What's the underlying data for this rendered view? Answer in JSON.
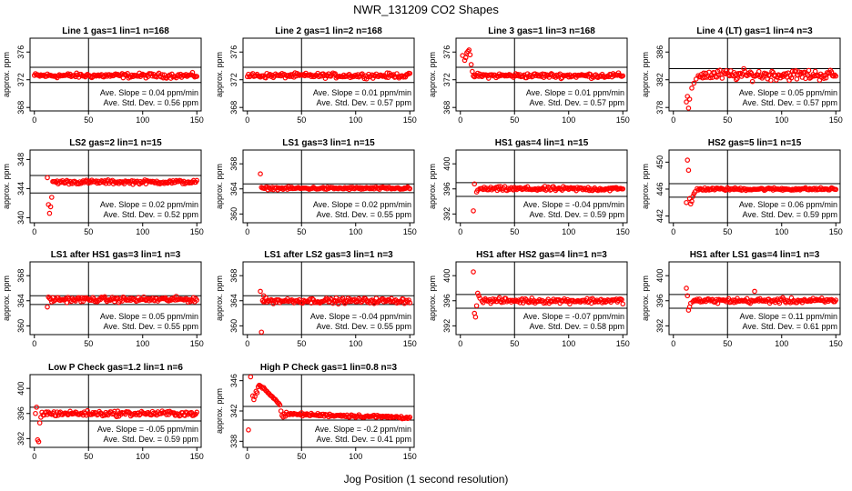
{
  "figure": {
    "title": "NWR_131209  CO2 Shapes",
    "xlabel": "Jog Position (1 second resolution)"
  },
  "chart_data": [
    {
      "type": "scatter",
      "title": "Line 1 gas=1 lin=1 n=168",
      "ylabel": "approx. ppm",
      "xlim": [
        -4,
        154
      ],
      "ylim": [
        367.5,
        378
      ],
      "xticks": [
        0,
        50,
        100,
        150
      ],
      "yticks": [
        368,
        372,
        376
      ],
      "hlines": [
        373.8,
        371.6
      ],
      "vline": 50,
      "slope_text": "Ave. Slope =  0.04  ppm/min",
      "std_text": "Ave. Std. Dev. =  0.56  ppm",
      "series": {
        "x_start": 0,
        "x_end": 150,
        "level": 372.6,
        "noise": 0.25,
        "outliers": []
      }
    },
    {
      "type": "scatter",
      "title": "Line 2 gas=1 lin=2 n=168",
      "ylabel": "approx. ppm",
      "xlim": [
        -4,
        154
      ],
      "ylim": [
        367.5,
        378
      ],
      "xticks": [
        0,
        50,
        100,
        150
      ],
      "yticks": [
        368,
        372,
        376
      ],
      "hlines": [
        373.8,
        371.6
      ],
      "vline": 50,
      "slope_text": "Ave. Slope =  0.01  ppm/min",
      "std_text": "Ave. Std. Dev. =  0.57  ppm",
      "series": {
        "x_start": 0,
        "x_end": 150,
        "level": 372.6,
        "noise": 0.25,
        "outliers": []
      }
    },
    {
      "type": "scatter",
      "title": "Line 3 gas=1 lin=3 n=168",
      "ylabel": "approx. ppm",
      "xlim": [
        -4,
        154
      ],
      "ylim": [
        367.5,
        378
      ],
      "xticks": [
        0,
        50,
        100,
        150
      ],
      "yticks": [
        368,
        372,
        376
      ],
      "hlines": [
        373.8,
        371.6
      ],
      "vline": 50,
      "slope_text": "Ave. Slope =  0.01  ppm/min",
      "std_text": "Ave. Std. Dev. =  0.57  ppm",
      "series": {
        "x_start": 12,
        "x_end": 150,
        "level": 372.6,
        "noise": 0.25,
        "outliers": [
          [
            2,
            375.5
          ],
          [
            4,
            374.8
          ],
          [
            5,
            375.2
          ],
          [
            6,
            375.9
          ],
          [
            7,
            376.1
          ],
          [
            8,
            376.3
          ],
          [
            9,
            375.6
          ],
          [
            10,
            374.2
          ],
          [
            11,
            373.2
          ]
        ]
      }
    },
    {
      "type": "scatter",
      "title": "Line 4 (LT) gas=1 lin=4 n=3",
      "ylabel": "approx. ppm",
      "xlim": [
        -4,
        154
      ],
      "ylim": [
        377.5,
        388
      ],
      "xticks": [
        0,
        50,
        100,
        150
      ],
      "yticks": [
        378,
        382,
        386
      ],
      "hlines": [
        383.6,
        381.6
      ],
      "vline": 50,
      "slope_text": "Ave. Slope =  0.05  ppm/min",
      "std_text": "Ave. Std. Dev. =  0.57  ppm",
      "series": {
        "x_start": 24,
        "x_end": 150,
        "level": 382.7,
        "noise": 0.55,
        "outliers": [
          [
            12,
            378.8
          ],
          [
            13,
            379.6
          ],
          [
            14,
            377.9
          ],
          [
            15,
            379.2
          ],
          [
            17,
            380.8
          ],
          [
            19,
            381.5
          ],
          [
            21,
            382.1
          ],
          [
            23,
            382.6
          ]
        ]
      }
    },
    {
      "type": "scatter",
      "title": "LS2 gas=2 lin=1 n=15",
      "ylabel": "approx. ppm",
      "xlim": [
        -4,
        154
      ],
      "ylim": [
        339.3,
        349.3
      ],
      "xticks": [
        0,
        50,
        100,
        150
      ],
      "yticks": [
        340,
        344,
        348
      ],
      "hlines": [
        345.8,
        343.4
      ],
      "vline": 50,
      "slope_text": "Ave. Slope =  0.02  ppm/min",
      "std_text": "Ave. Std. Dev. =  0.52  ppm",
      "series": {
        "x_start": 17,
        "x_end": 150,
        "level": 344.9,
        "noise": 0.2,
        "outliers": [
          [
            12,
            345.5
          ],
          [
            13,
            341.8
          ],
          [
            14,
            340.6
          ],
          [
            15,
            341.5
          ],
          [
            16,
            342.8
          ]
        ]
      }
    },
    {
      "type": "scatter",
      "title": "LS1 gas=3 lin=1 n=15",
      "ylabel": "approx. ppm",
      "xlim": [
        -4,
        154
      ],
      "ylim": [
        358.6,
        370.2
      ],
      "xticks": [
        0,
        50,
        100,
        150
      ],
      "yticks": [
        360,
        364,
        368
      ],
      "hlines": [
        364.8,
        363.4
      ],
      "vline": 50,
      "slope_text": "Ave. Slope =  0.02  ppm/min",
      "std_text": "Ave. Std. Dev. =  0.55  ppm",
      "series": {
        "x_start": 13,
        "x_end": 150,
        "level": 364.1,
        "noise": 0.15,
        "outliers": [
          [
            12,
            366.4
          ]
        ]
      }
    },
    {
      "type": "scatter",
      "title": "HS1 gas=4 lin=1 n=15",
      "ylabel": "approx. ppm",
      "xlim": [
        -4,
        154
      ],
      "ylim": [
        390.6,
        402.2
      ],
      "xticks": [
        0,
        50,
        100,
        150
      ],
      "yticks": [
        392,
        396,
        400
      ],
      "hlines": [
        397.0,
        394.8
      ],
      "vline": 50,
      "slope_text": "Ave. Slope =  -0.04  ppm/min",
      "std_text": "Ave. Std. Dev. =  0.59  ppm",
      "series": {
        "x_start": 18,
        "x_end": 150,
        "level": 396.0,
        "noise": 0.25,
        "outliers": [
          [
            12,
            392.5
          ],
          [
            13,
            396.8
          ],
          [
            15,
            395.5
          ],
          [
            16,
            395.8
          ]
        ]
      }
    },
    {
      "type": "scatter",
      "title": "HS2 gas=5 lin=1 n=15",
      "ylabel": "approx. ppm",
      "xlim": [
        -4,
        154
      ],
      "ylim": [
        441.0,
        451.8
      ],
      "xticks": [
        0,
        50,
        100,
        150
      ],
      "yticks": [
        442,
        446,
        450
      ],
      "hlines": [
        446.8,
        444.8
      ],
      "vline": 50,
      "slope_text": "Ave. Slope =  0.06  ppm/min",
      "std_text": "Ave. Std. Dev. =  0.59  ppm",
      "series": {
        "x_start": 22,
        "x_end": 150,
        "level": 446.0,
        "noise": 0.15,
        "outliers": [
          [
            12,
            444.0
          ],
          [
            13,
            450.3
          ],
          [
            14,
            448.8
          ],
          [
            15,
            444.6
          ],
          [
            16,
            443.8
          ],
          [
            17,
            444.2
          ],
          [
            18,
            444.9
          ],
          [
            19,
            445.3
          ],
          [
            20,
            445.6
          ]
        ]
      }
    },
    {
      "type": "scatter",
      "title": "LS1 after HS1 gas=3 lin=1 n=3",
      "ylabel": "approx. ppm",
      "xlim": [
        -4,
        154
      ],
      "ylim": [
        358.6,
        370.2
      ],
      "xticks": [
        0,
        50,
        100,
        150
      ],
      "yticks": [
        360,
        364,
        368
      ],
      "hlines": [
        364.8,
        363.4
      ],
      "vline": 50,
      "slope_text": "Ave. Slope =  0.05  ppm/min",
      "std_text": "Ave. Std. Dev. =  0.55  ppm",
      "series": {
        "x_start": 14,
        "x_end": 150,
        "level": 364.2,
        "noise": 0.3,
        "outliers": [
          [
            12,
            363.0
          ],
          [
            13,
            364.6
          ]
        ]
      }
    },
    {
      "type": "scatter",
      "title": "LS1 after LS2 gas=3 lin=1 n=3",
      "ylabel": "approx. ppm",
      "xlim": [
        -4,
        154
      ],
      "ylim": [
        358.6,
        370.2
      ],
      "xticks": [
        0,
        50,
        100,
        150
      ],
      "yticks": [
        360,
        364,
        368
      ],
      "hlines": [
        364.8,
        363.4
      ],
      "vline": 50,
      "slope_text": "Ave. Slope =  -0.04  ppm/min",
      "std_text": "Ave. Std. Dev. =  0.55  ppm",
      "series": {
        "x_start": 14,
        "x_end": 150,
        "level": 364.0,
        "noise": 0.3,
        "outliers": [
          [
            12,
            365.5
          ],
          [
            13,
            359.0
          ],
          [
            15,
            364.8
          ]
        ]
      }
    },
    {
      "type": "scatter",
      "title": "HS1 after HS2 gas=4 lin=1 n=3",
      "ylabel": "approx. ppm",
      "xlim": [
        -4,
        154
      ],
      "ylim": [
        390.6,
        402.2
      ],
      "xticks": [
        0,
        50,
        100,
        150
      ],
      "yticks": [
        392,
        396,
        400
      ],
      "hlines": [
        397.0,
        394.8
      ],
      "vline": 50,
      "slope_text": "Ave. Slope =  -0.07  ppm/min",
      "std_text": "Ave. Std. Dev. =  0.58  ppm",
      "series": {
        "x_start": 20,
        "x_end": 150,
        "level": 396.0,
        "noise": 0.3,
        "outliers": [
          [
            12,
            400.6
          ],
          [
            13,
            394.0
          ],
          [
            14,
            393.4
          ],
          [
            15,
            395.2
          ],
          [
            16,
            397.2
          ],
          [
            17,
            396.8
          ],
          [
            18,
            396.4
          ]
        ]
      }
    },
    {
      "type": "scatter",
      "title": "HS1 after LS1 gas=4 lin=1 n=3",
      "ylabel": "approx. ppm",
      "xlim": [
        -4,
        154
      ],
      "ylim": [
        390.6,
        402.2
      ],
      "xticks": [
        0,
        50,
        100,
        150
      ],
      "yticks": [
        392,
        396,
        400
      ],
      "hlines": [
        397.0,
        394.8
      ],
      "vline": 50,
      "slope_text": "Ave. Slope =  0.11  ppm/min",
      "std_text": "Ave. Std. Dev. =  0.61  ppm",
      "series": {
        "x_start": 18,
        "x_end": 150,
        "level": 396.0,
        "noise": 0.3,
        "outliers": [
          [
            12,
            398.0
          ],
          [
            13,
            396.8
          ],
          [
            14,
            394.5
          ],
          [
            15,
            395.0
          ],
          [
            16,
            395.6
          ],
          [
            75,
            397.5
          ]
        ]
      }
    },
    {
      "type": "scatter",
      "title": "Low P Check gas=1.2 lin=1 n=6",
      "ylabel": "",
      "xlim": [
        -4,
        154
      ],
      "ylim": [
        390.6,
        402.2
      ],
      "xticks": [
        0,
        50,
        100,
        150
      ],
      "yticks": [
        392,
        396,
        400
      ],
      "hlines": [
        397.0,
        394.8
      ],
      "vline": 50,
      "slope_text": "Ave. Slope =  -0.05  ppm/min",
      "std_text": "Ave. Std. Dev. =  0.59  ppm",
      "series": {
        "x_start": 8,
        "x_end": 150,
        "level": 396.0,
        "noise": 0.3,
        "outliers": [
          [
            1,
            396.0
          ],
          [
            2,
            397.0
          ],
          [
            3,
            391.8
          ],
          [
            4,
            391.5
          ],
          [
            5,
            394.5
          ],
          [
            6,
            395.4
          ],
          [
            7,
            396.2
          ]
        ]
      }
    },
    {
      "type": "scatter",
      "title": "High P Check gas=1 lin=0.8 n=3",
      "ylabel": "approx. ppm",
      "xlim": [
        -4,
        154
      ],
      "ylim": [
        337.2,
        346.8
      ],
      "xticks": [
        0,
        50,
        100,
        150
      ],
      "yticks": [
        338,
        342,
        346
      ],
      "hlines": [
        342.6,
        340.8
      ],
      "vline": 50,
      "slope_text": "Ave. Slope =  -0.2  ppm/min",
      "std_text": "Ave. Std. Dev. =  0.41  ppm",
      "series": {
        "x_start": 36,
        "x_end": 150,
        "level": 341.6,
        "noise": 0.15,
        "trend": -0.004,
        "outliers": [
          [
            1,
            339.5
          ],
          [
            3,
            346.5
          ],
          [
            5,
            344.0
          ],
          [
            6,
            343.5
          ],
          [
            7,
            343.9
          ],
          [
            8,
            344.6
          ],
          [
            9,
            344.4
          ],
          [
            10,
            345.2
          ],
          [
            11,
            345.4
          ],
          [
            12,
            345.3
          ],
          [
            13,
            345.2
          ],
          [
            14,
            345.0
          ],
          [
            15,
            345.1
          ],
          [
            16,
            344.9
          ],
          [
            17,
            344.7
          ],
          [
            18,
            344.6
          ],
          [
            19,
            344.4
          ],
          [
            20,
            344.3
          ],
          [
            21,
            344.1
          ],
          [
            22,
            344.0
          ],
          [
            23,
            343.9
          ],
          [
            24,
            343.7
          ],
          [
            25,
            343.6
          ],
          [
            26,
            343.5
          ],
          [
            27,
            343.3
          ],
          [
            28,
            343.1
          ],
          [
            29,
            343.0
          ],
          [
            30,
            342.8
          ],
          [
            31,
            342.0
          ],
          [
            32,
            341.4
          ],
          [
            33,
            341.2
          ],
          [
            34,
            341.6
          ],
          [
            35,
            341.3
          ]
        ]
      }
    }
  ]
}
